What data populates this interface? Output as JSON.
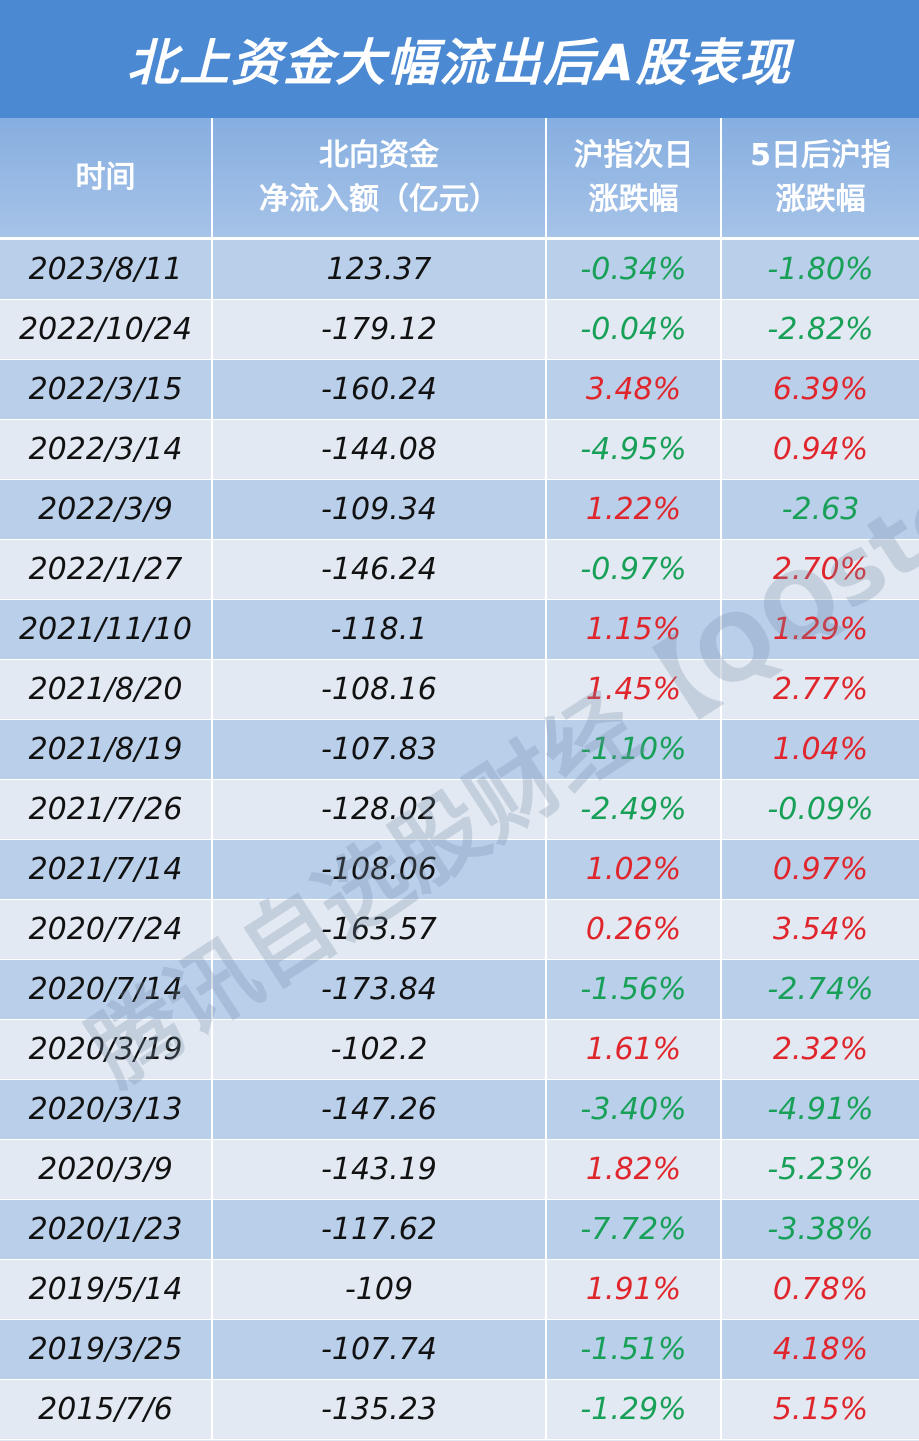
{
  "title": "北上资金大幅流出后A股表现",
  "headers": {
    "date": "时间",
    "flow_line1": "北向资金",
    "flow_line2": "净流入额（亿元）",
    "next_line1": "沪指次日",
    "next_line2": "涨跌幅",
    "five_line1": "5日后沪指",
    "five_line2": "涨跌幅"
  },
  "colors": {
    "up": "#e0262c",
    "down": "#18a058",
    "title_bg": "#4b89d3"
  },
  "watermark": "腾讯自选股财经【QQstock】",
  "rows": [
    [
      "2023/8/11",
      "123.37",
      "-0.34%",
      "-1.80%"
    ],
    [
      "2022/10/24",
      "-179.12",
      "-0.04%",
      "-2.82%"
    ],
    [
      "2022/3/15",
      "-160.24",
      "3.48%",
      "6.39%"
    ],
    [
      "2022/3/14",
      "-144.08",
      "-4.95%",
      "0.94%"
    ],
    [
      "2022/3/9",
      "-109.34",
      "1.22%",
      "-2.63"
    ],
    [
      "2022/1/27",
      "-146.24",
      "-0.97%",
      "2.70%"
    ],
    [
      "2021/11/10",
      "-118.1",
      "1.15%",
      "1.29%"
    ],
    [
      "2021/8/20",
      "-108.16",
      "1.45%",
      "2.77%"
    ],
    [
      "2021/8/19",
      "-107.83",
      "-1.10%",
      "1.04%"
    ],
    [
      "2021/7/26",
      "-128.02",
      "-2.49%",
      "-0.09%"
    ],
    [
      "2021/7/14",
      "-108.06",
      "1.02%",
      "0.97%"
    ],
    [
      "2020/7/24",
      "-163.57",
      "0.26%",
      "3.54%"
    ],
    [
      "2020/7/14",
      "-173.84",
      "-1.56%",
      "-2.74%"
    ],
    [
      "2020/3/19",
      "-102.2",
      "1.61%",
      "2.32%"
    ],
    [
      "2020/3/13",
      "-147.26",
      "-3.40%",
      "-4.91%"
    ],
    [
      "2020/3/9",
      "-143.19",
      "1.82%",
      "-5.23%"
    ],
    [
      "2020/1/23",
      "-117.62",
      "-7.72%",
      "-3.38%"
    ],
    [
      "2019/5/14",
      "-109",
      "1.91%",
      "0.78%"
    ],
    [
      "2019/3/25",
      "-107.74",
      "-1.51%",
      "4.18%"
    ],
    [
      "2015/7/6",
      "-135.23",
      "-1.29%",
      "5.15%"
    ]
  ]
}
